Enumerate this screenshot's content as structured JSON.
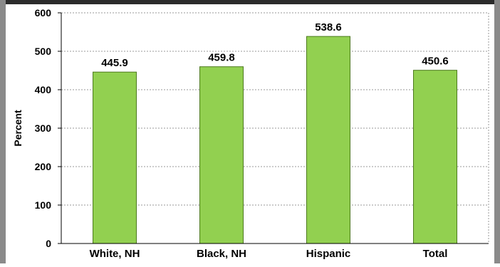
{
  "chart_data": {
    "type": "bar",
    "categories": [
      "White, NH",
      "Black, NH",
      "Hispanic",
      "Total"
    ],
    "values": [
      445.9,
      459.8,
      538.6,
      450.6
    ],
    "data_labels": [
      "445.9",
      "459.8",
      "538.6",
      "450.6"
    ],
    "ylabel": "Percent",
    "xlabel": "",
    "ylim": [
      0,
      600
    ],
    "yticks": [
      0,
      100,
      200,
      300,
      400,
      500,
      600
    ],
    "yticklabels": [
      "0",
      "100",
      "200",
      "300",
      "400",
      "500",
      "600"
    ],
    "grid": true,
    "bar_color": "#92d050",
    "bar_border_color": "#4d7a1f"
  }
}
